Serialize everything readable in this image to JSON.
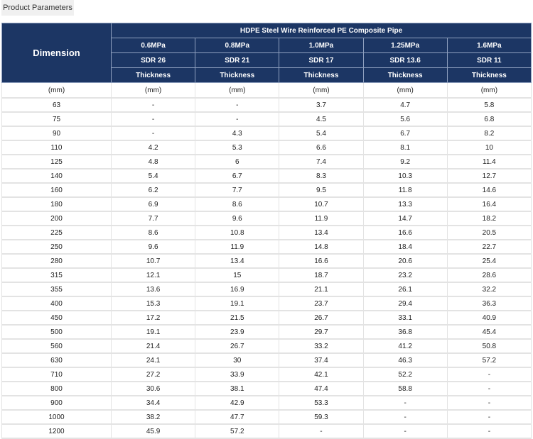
{
  "tab": {
    "label": "Product Parameters"
  },
  "table": {
    "dimension_header": "Dimension",
    "group_header": "HDPE Steel Wire Reinforced PE Composite Pipe",
    "pressures": [
      "0.6MPa",
      "0.8MPa",
      "1.0MPa",
      "1.25MPa",
      "1.6MPa"
    ],
    "sdrs": [
      "SDR 26",
      "SDR 21",
      "SDR 17",
      "SDR 13.6",
      "SDR 11"
    ],
    "thickness_label": "Thickness",
    "units": [
      "(mm)",
      "(mm)",
      "(mm)",
      "(mm)",
      "(mm)",
      "(mm)"
    ],
    "rows": [
      [
        "63",
        "-",
        "-",
        "3.7",
        "4.7",
        "5.8"
      ],
      [
        "75",
        "-",
        "-",
        "4.5",
        "5.6",
        "6.8"
      ],
      [
        "90",
        "-",
        "4.3",
        "5.4",
        "6.7",
        "8.2"
      ],
      [
        "110",
        "4.2",
        "5.3",
        "6.6",
        "8.1",
        "10"
      ],
      [
        "125",
        "4.8",
        "6",
        "7.4",
        "9.2",
        "11.4"
      ],
      [
        "140",
        "5.4",
        "6.7",
        "8.3",
        "10.3",
        "12.7"
      ],
      [
        "160",
        "6.2",
        "7.7",
        "9.5",
        "11.8",
        "14.6"
      ],
      [
        "180",
        "6.9",
        "8.6",
        "10.7",
        "13.3",
        "16.4"
      ],
      [
        "200",
        "7.7",
        "9.6",
        "11.9",
        "14.7",
        "18.2"
      ],
      [
        "225",
        "8.6",
        "10.8",
        "13.4",
        "16.6",
        "20.5"
      ],
      [
        "250",
        "9.6",
        "11.9",
        "14.8",
        "18.4",
        "22.7"
      ],
      [
        "280",
        "10.7",
        "13.4",
        "16.6",
        "20.6",
        "25.4"
      ],
      [
        "315",
        "12.1",
        "15",
        "18.7",
        "23.2",
        "28.6"
      ],
      [
        "355",
        "13.6",
        "16.9",
        "21.1",
        "26.1",
        "32.2"
      ],
      [
        "400",
        "15.3",
        "19.1",
        "23.7",
        "29.4",
        "36.3"
      ],
      [
        "450",
        "17.2",
        "21.5",
        "26.7",
        "33.1",
        "40.9"
      ],
      [
        "500",
        "19.1",
        "23.9",
        "29.7",
        "36.8",
        "45.4"
      ],
      [
        "560",
        "21.4",
        "26.7",
        "33.2",
        "41.2",
        "50.8"
      ],
      [
        "630",
        "24.1",
        "30",
        "37.4",
        "46.3",
        "57.2"
      ],
      [
        "710",
        "27.2",
        "33.9",
        "42.1",
        "52.2",
        "-"
      ],
      [
        "800",
        "30.6",
        "38.1",
        "47.4",
        "58.8",
        "-"
      ],
      [
        "900",
        "34.4",
        "42.9",
        "53.3",
        "-",
        "-"
      ],
      [
        "1000",
        "38.2",
        "47.7",
        "59.3",
        "-",
        "-"
      ],
      [
        "1200",
        "45.9",
        "57.2",
        "-",
        "-",
        "-"
      ]
    ]
  }
}
